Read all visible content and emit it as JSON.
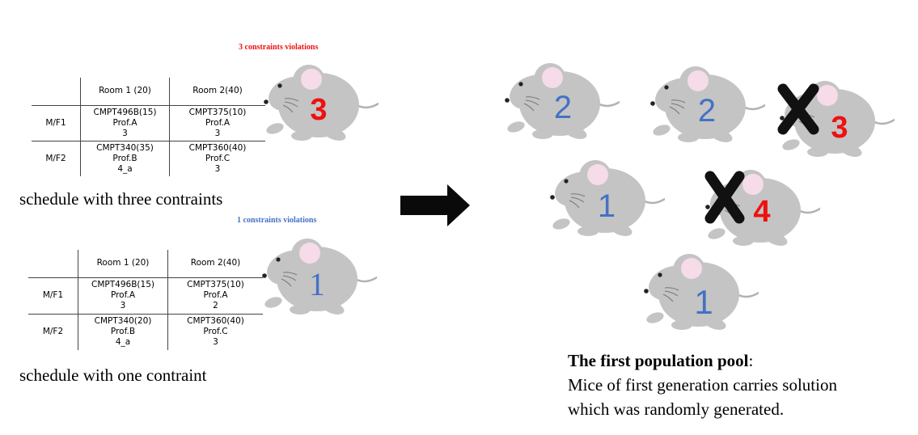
{
  "colors": {
    "red": "#ee1111",
    "blue": "#4472c4",
    "mouse_body": "#c4c4c4",
    "ear": "#f6dbe9",
    "cross": "#111111"
  },
  "icons": {
    "mouse": "mouse-icon",
    "arrow": "right-arrow-icon",
    "cross": "cross-icon"
  },
  "schedule_a": {
    "violations_label": "3 constraints violations",
    "violation_count": "3",
    "headers": [
      "",
      "Room 1 (20)",
      "Room 2(40)"
    ],
    "rows": [
      {
        "slot": "M/F1",
        "cells": [
          [
            "CMPT496B(15)",
            "Prof.A",
            "3"
          ],
          [
            "CMPT375(10)",
            "Prof.A",
            "3"
          ]
        ]
      },
      {
        "slot": "M/F2",
        "cells": [
          [
            "CMPT340(35)",
            "Prof.B",
            "4_a"
          ],
          [
            "CMPT360(40)",
            "Prof.C",
            "3"
          ]
        ]
      }
    ],
    "caption": "schedule with three contraints"
  },
  "schedule_b": {
    "violations_label": "1 constraints violations",
    "violation_count": "1",
    "headers": [
      "",
      "Room 1 (20)",
      "Room 2(40)"
    ],
    "rows": [
      {
        "slot": "M/F1",
        "cells": [
          [
            "CMPT496B(15)",
            "Prof.A",
            "3"
          ],
          [
            "CMPT375(10)",
            "Prof.A",
            "2"
          ]
        ]
      },
      {
        "slot": "M/F2",
        "cells": [
          [
            "CMPT340(20)",
            "Prof.B",
            "4_a"
          ],
          [
            "CMPT360(40)",
            "Prof.C",
            "3"
          ]
        ]
      }
    ],
    "caption": "schedule with one contraint"
  },
  "pool": {
    "mice": [
      {
        "number": "2",
        "color": "blue",
        "crossed": false
      },
      {
        "number": "2",
        "color": "blue",
        "crossed": false
      },
      {
        "number": "3",
        "color": "red",
        "crossed": true
      },
      {
        "number": "1",
        "color": "blue",
        "crossed": false
      },
      {
        "number": "4",
        "color": "red",
        "crossed": true
      },
      {
        "number": "1",
        "color": "blue",
        "crossed": false
      }
    ],
    "title": "The first population pool",
    "title_suffix": ":",
    "line1": "Mice of first generation carries solution",
    "line2": "which was randomly generated."
  }
}
